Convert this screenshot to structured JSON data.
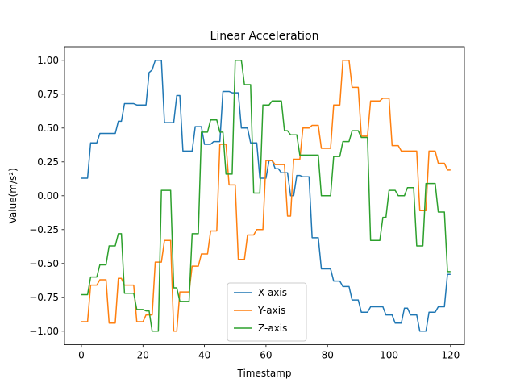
{
  "chart_data": {
    "type": "line",
    "title": "Linear Acceleration",
    "xlabel": "Timestamp",
    "ylabel": "Value(m/s²)",
    "xlim": [
      -5.5,
      124.5
    ],
    "ylim": [
      -1.1,
      1.1
    ],
    "xticks": [
      0,
      20,
      40,
      60,
      80,
      100,
      120
    ],
    "yticks": [
      -1.0,
      -0.75,
      -0.5,
      -0.25,
      0.0,
      0.25,
      0.5,
      0.75,
      1.0
    ],
    "ytick_labels": [
      "−1.00",
      "−0.75",
      "−0.50",
      "−0.25",
      "0.00",
      "0.25",
      "0.50",
      "0.75",
      "1.00"
    ],
    "xtick_labels": [
      "0",
      "20",
      "40",
      "60",
      "80",
      "100",
      "120"
    ],
    "legend_position": "lower-center",
    "grid": false,
    "series": [
      {
        "name": "X-axis",
        "color": "#1f77b4",
        "x": [
          0,
          1,
          2,
          3,
          4,
          5,
          6,
          7,
          8,
          9,
          10,
          11,
          12,
          13,
          14,
          15,
          16,
          17,
          18,
          19,
          20,
          21,
          22,
          23,
          24,
          25,
          26,
          27,
          28,
          29,
          30,
          31,
          32,
          33,
          34,
          35,
          36,
          37,
          38,
          39,
          40,
          41,
          42,
          43,
          44,
          45,
          46,
          47,
          48,
          49,
          50,
          51,
          52,
          53,
          54,
          55,
          56,
          57,
          58,
          59,
          60,
          61,
          62,
          63,
          64,
          65,
          66,
          67,
          68,
          69,
          70,
          71,
          72,
          73,
          74,
          75,
          76,
          77,
          78,
          79,
          80,
          81,
          82,
          83,
          84,
          85,
          86,
          87,
          88,
          89,
          90,
          91,
          92,
          93,
          94,
          95,
          96,
          97,
          98,
          99,
          100,
          101,
          102,
          103,
          104,
          105,
          106,
          107,
          108,
          109,
          110,
          111,
          112,
          113,
          114,
          115,
          116,
          117,
          118,
          119,
          120
        ],
        "y": [
          0.13,
          0.13,
          0.13,
          0.39,
          0.39,
          0.39,
          0.46,
          0.46,
          0.46,
          0.46,
          0.46,
          0.46,
          0.55,
          0.55,
          0.68,
          0.68,
          0.68,
          0.68,
          0.67,
          0.67,
          0.67,
          0.67,
          0.91,
          0.93,
          1.0,
          1.0,
          1.0,
          0.54,
          0.54,
          0.54,
          0.54,
          0.74,
          0.74,
          0.33,
          0.33,
          0.33,
          0.33,
          0.51,
          0.51,
          0.51,
          0.38,
          0.38,
          0.38,
          0.4,
          0.4,
          0.4,
          0.77,
          0.77,
          0.77,
          0.76,
          0.76,
          0.76,
          0.5,
          0.5,
          0.5,
          0.39,
          0.39,
          0.39,
          0.13,
          0.13,
          0.13,
          0.26,
          0.26,
          0.2,
          0.2,
          0.17,
          0.17,
          0.17,
          0.0,
          0.0,
          0.15,
          0.15,
          0.14,
          0.14,
          0.14,
          -0.31,
          -0.31,
          -0.31,
          -0.54,
          -0.54,
          -0.54,
          -0.54,
          -0.63,
          -0.63,
          -0.63,
          -0.67,
          -0.67,
          -0.67,
          -0.77,
          -0.77,
          -0.77,
          -0.86,
          -0.86,
          -0.86,
          -0.82,
          -0.82,
          -0.82,
          -0.82,
          -0.82,
          -0.88,
          -0.88,
          -0.88,
          -0.94,
          -0.94,
          -0.94,
          -0.83,
          -0.83,
          -0.88,
          -0.88,
          -0.88,
          -1.0,
          -1.0,
          -1.0,
          -0.86,
          -0.86,
          -0.86,
          -0.82,
          -0.82,
          -0.82,
          -0.58,
          -0.58
        ]
      },
      {
        "name": "Y-axis",
        "color": "#ff7f0e",
        "x": [
          0,
          1,
          2,
          3,
          4,
          5,
          6,
          7,
          8,
          9,
          10,
          11,
          12,
          13,
          14,
          15,
          16,
          17,
          18,
          19,
          20,
          21,
          22,
          23,
          24,
          25,
          26,
          27,
          28,
          29,
          30,
          31,
          32,
          33,
          34,
          35,
          36,
          37,
          38,
          39,
          40,
          41,
          42,
          43,
          44,
          45,
          46,
          47,
          48,
          49,
          50,
          51,
          52,
          53,
          54,
          55,
          56,
          57,
          58,
          59,
          60,
          61,
          62,
          63,
          64,
          65,
          66,
          67,
          68,
          69,
          70,
          71,
          72,
          73,
          74,
          75,
          76,
          77,
          78,
          79,
          80,
          81,
          82,
          83,
          84,
          85,
          86,
          87,
          88,
          89,
          90,
          91,
          92,
          93,
          94,
          95,
          96,
          97,
          98,
          99,
          100,
          101,
          102,
          103,
          104,
          105,
          106,
          107,
          108,
          109,
          110,
          111,
          112,
          113,
          114,
          115,
          116,
          117,
          118,
          119,
          120
        ],
        "y": [
          -0.93,
          -0.93,
          -0.93,
          -0.66,
          -0.66,
          -0.66,
          -0.62,
          -0.62,
          -0.62,
          -0.94,
          -0.94,
          -0.94,
          -0.61,
          -0.61,
          -0.66,
          -0.66,
          -0.66,
          -0.66,
          -0.93,
          -0.93,
          -0.93,
          -0.88,
          -0.88,
          -0.88,
          -0.49,
          -0.49,
          -0.49,
          -0.33,
          -0.33,
          -0.33,
          -1.0,
          -1.0,
          -0.71,
          -0.71,
          -0.71,
          -0.71,
          -0.52,
          -0.52,
          -0.52,
          -0.43,
          -0.43,
          -0.43,
          -0.26,
          -0.26,
          -0.26,
          0.38,
          0.38,
          0.38,
          0.08,
          0.08,
          0.08,
          -0.47,
          -0.47,
          -0.47,
          -0.29,
          -0.29,
          -0.29,
          -0.25,
          -0.25,
          -0.25,
          0.26,
          0.26,
          0.26,
          0.23,
          0.23,
          0.23,
          0.23,
          -0.15,
          -0.15,
          0.27,
          0.27,
          0.27,
          0.5,
          0.5,
          0.5,
          0.52,
          0.52,
          0.52,
          0.35,
          0.35,
          0.35,
          0.35,
          0.67,
          0.67,
          0.67,
          1.0,
          1.0,
          1.0,
          0.8,
          0.8,
          0.8,
          0.44,
          0.44,
          0.44,
          0.7,
          0.7,
          0.7,
          0.7,
          0.72,
          0.72,
          0.72,
          0.37,
          0.37,
          0.37,
          0.33,
          0.33,
          0.33,
          0.33,
          0.33,
          0.33,
          -0.11,
          -0.11,
          -0.11,
          0.33,
          0.33,
          0.33,
          0.24,
          0.24,
          0.24,
          0.19,
          0.19
        ]
      },
      {
        "name": "Z-axis",
        "color": "#2ca02c",
        "x": [
          0,
          1,
          2,
          3,
          4,
          5,
          6,
          7,
          8,
          9,
          10,
          11,
          12,
          13,
          14,
          15,
          16,
          17,
          18,
          19,
          20,
          21,
          22,
          23,
          24,
          25,
          26,
          27,
          28,
          29,
          30,
          31,
          32,
          33,
          34,
          35,
          36,
          37,
          38,
          39,
          40,
          41,
          42,
          43,
          44,
          45,
          46,
          47,
          48,
          49,
          50,
          51,
          52,
          53,
          54,
          55,
          56,
          57,
          58,
          59,
          60,
          61,
          62,
          63,
          64,
          65,
          66,
          67,
          68,
          69,
          70,
          71,
          72,
          73,
          74,
          75,
          76,
          77,
          78,
          79,
          80,
          81,
          82,
          83,
          84,
          85,
          86,
          87,
          88,
          89,
          90,
          91,
          92,
          93,
          94,
          95,
          96,
          97,
          98,
          99,
          100,
          101,
          102,
          103,
          104,
          105,
          106,
          107,
          108,
          109,
          110,
          111,
          112,
          113,
          114,
          115,
          116,
          117,
          118,
          119,
          120
        ],
        "y": [
          -0.73,
          -0.73,
          -0.73,
          -0.6,
          -0.6,
          -0.6,
          -0.51,
          -0.51,
          -0.51,
          -0.37,
          -0.37,
          -0.37,
          -0.28,
          -0.28,
          -0.72,
          -0.72,
          -0.72,
          -0.72,
          -0.84,
          -0.84,
          -0.84,
          -0.85,
          -0.85,
          -1.0,
          -1.0,
          -1.0,
          0.04,
          0.04,
          0.04,
          0.04,
          -0.68,
          -0.68,
          -0.78,
          -0.78,
          -0.78,
          -0.78,
          -0.28,
          -0.28,
          -0.28,
          0.47,
          0.47,
          0.47,
          0.56,
          0.56,
          0.56,
          0.47,
          0.47,
          0.16,
          0.16,
          0.16,
          1.0,
          1.0,
          1.0,
          0.82,
          0.82,
          0.82,
          0.02,
          0.02,
          0.02,
          0.67,
          0.67,
          0.67,
          0.7,
          0.7,
          0.7,
          0.7,
          0.48,
          0.48,
          0.45,
          0.45,
          0.45,
          0.3,
          0.3,
          0.3,
          0.3,
          0.3,
          0.3,
          0.3,
          -0.0,
          -0.0,
          -0.0,
          -0.0,
          0.29,
          0.29,
          0.29,
          0.4,
          0.4,
          0.4,
          0.48,
          0.48,
          0.48,
          0.43,
          0.43,
          0.43,
          -0.33,
          -0.33,
          -0.33,
          -0.33,
          -0.16,
          -0.16,
          0.04,
          0.04,
          0.04,
          0.0,
          0.0,
          0.0,
          0.06,
          0.06,
          0.06,
          -0.37,
          -0.37,
          -0.37,
          0.09,
          0.09,
          0.09,
          0.09,
          -0.12,
          -0.12,
          -0.12,
          -0.56,
          -0.56
        ]
      }
    ]
  }
}
